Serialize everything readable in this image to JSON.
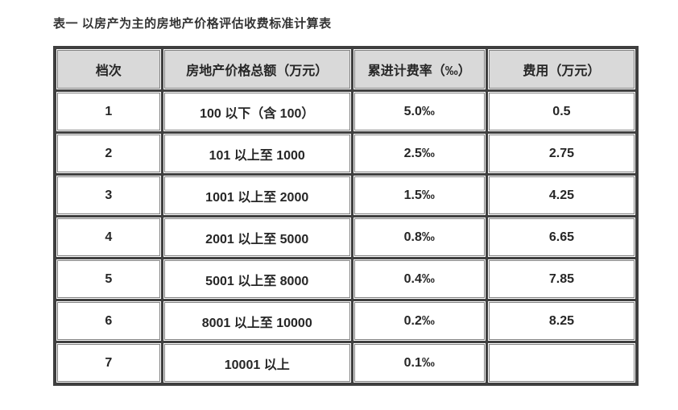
{
  "page_title": "表一 以房产为主的房地产价格评估收费标准计算表",
  "table": {
    "headers": {
      "tier": "档次",
      "total": "房地产价格总额（万元）",
      "rate": "累进计费率（‰）",
      "fee": "费用（万元）"
    },
    "rows": [
      {
        "tier": "1",
        "total": "100 以下（含 100）",
        "rate": "5.0‰",
        "fee": "0.5"
      },
      {
        "tier": "2",
        "total": "101 以上至 1000",
        "rate": "2.5‰",
        "fee": "2.75"
      },
      {
        "tier": "3",
        "total": "1001 以上至 2000",
        "rate": "1.5‰",
        "fee": "4.25"
      },
      {
        "tier": "4",
        "total": "2001 以上至 5000",
        "rate": "0.8‰",
        "fee": "6.65"
      },
      {
        "tier": "5",
        "total": "5001 以上至 8000",
        "rate": "0.4‰",
        "fee": "7.85"
      },
      {
        "tier": "6",
        "total": "8001 以上至 10000",
        "rate": "0.2‰",
        "fee": "8.25"
      },
      {
        "tier": "7",
        "total": "10001 以上",
        "rate": "0.1‰",
        "fee": ""
      }
    ]
  },
  "colors": {
    "header_bg": "#d9d9d9",
    "grid_dark": "#3f3f3f",
    "cell_border": "#808080",
    "text": "#262626",
    "title": "#333333"
  }
}
